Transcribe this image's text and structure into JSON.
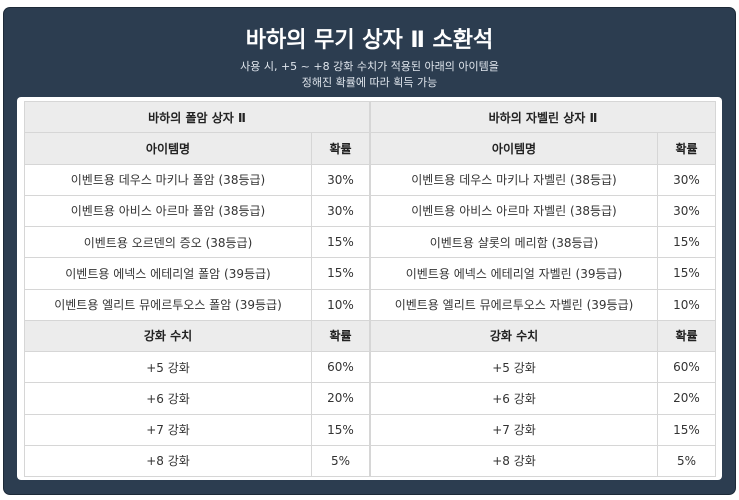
{
  "header": {
    "title": "바하의 무기 상자 Ⅱ 소환석",
    "subtitle": [
      "사용 시, +5 ~ +8 강화 수치가 적용된 아래의 아이템을",
      "정해진 확률에 따라 획득 가능"
    ]
  },
  "tables": [
    {
      "title": "바하의 폴암 상자 Ⅱ",
      "item_header": [
        "아이템명",
        "확률"
      ],
      "items": [
        [
          "이벤트용 데우스 마키나 폴암 (38등급)",
          "30%"
        ],
        [
          "이벤트용 아비스 아르마 폴암 (38등급)",
          "30%"
        ],
        [
          "이벤트용 오르덴의 증오 (38등급)",
          "15%"
        ],
        [
          "이벤트용 에넥스 에테리얼 폴암 (39등급)",
          "15%"
        ],
        [
          "이벤트용 엘리트 뮤에르투오스 폴암 (39등급)",
          "10%"
        ]
      ],
      "enhance_header": [
        "강화 수치",
        "확률"
      ],
      "enhancements": [
        [
          "+5 강화",
          "60%"
        ],
        [
          "+6 강화",
          "20%"
        ],
        [
          "+7 강화",
          "15%"
        ],
        [
          "+8 강화",
          "5%"
        ]
      ]
    },
    {
      "title": "바하의 자벨린 상자 Ⅱ",
      "item_header": [
        "아이템명",
        "확률"
      ],
      "items": [
        [
          "이벤트용 데우스 마키나 자벨린 (38등급)",
          "30%"
        ],
        [
          "이벤트용 아비스 아르마 자벨린 (38등급)",
          "30%"
        ],
        [
          "이벤트용 샬롯의 메리함 (38등급)",
          "15%"
        ],
        [
          "이벤트용 에넥스 에테리얼 자벨린 (39등급)",
          "15%"
        ],
        [
          "이벤트용 엘리트 뮤에르투오스 자벨린 (39등급)",
          "10%"
        ]
      ],
      "enhance_header": [
        "강화 수치",
        "확률"
      ],
      "enhancements": [
        [
          "+5 강화",
          "60%"
        ],
        [
          "+6 강화",
          "20%"
        ],
        [
          "+7 강화",
          "15%"
        ],
        [
          "+8 강화",
          "5%"
        ]
      ]
    }
  ]
}
